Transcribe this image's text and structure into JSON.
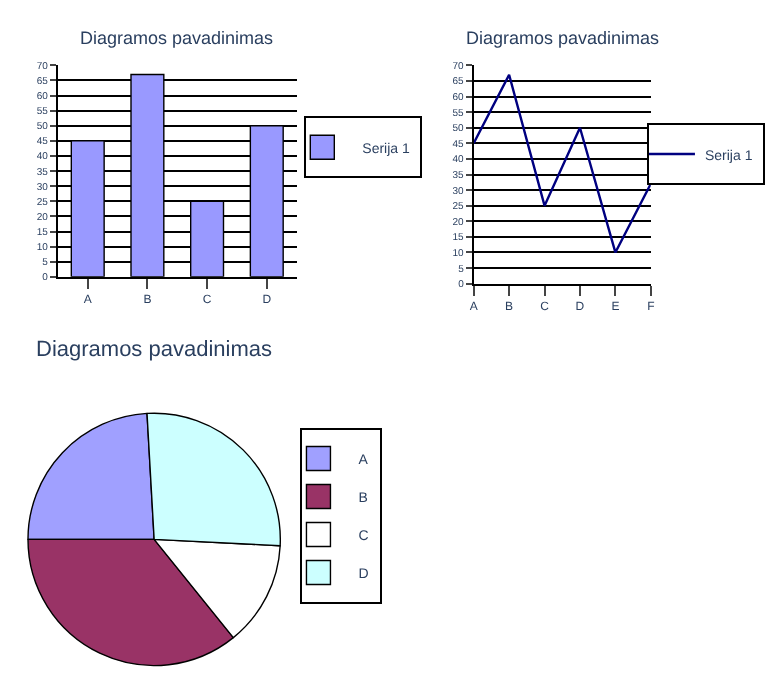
{
  "chart_data": [
    {
      "type": "bar",
      "title": "Diagramos pavadinimas",
      "categories": [
        "A",
        "B",
        "C",
        "D"
      ],
      "series": [
        {
          "name": "Serija 1",
          "color": "#9999ff",
          "values": [
            45,
            67,
            25,
            50
          ]
        }
      ],
      "ylim": [
        0,
        70
      ],
      "yticks": [
        0,
        5,
        10,
        15,
        20,
        25,
        30,
        35,
        40,
        45,
        50,
        55,
        60,
        65,
        70
      ],
      "grid": "y",
      "legend": "right"
    },
    {
      "type": "line",
      "title": "Diagramos pavadinimas",
      "categories": [
        "A",
        "B",
        "C",
        "D",
        "E",
        "F"
      ],
      "series": [
        {
          "name": "Serija 1",
          "color": "#000080",
          "values": [
            45,
            67,
            25,
            50,
            10,
            32
          ]
        }
      ],
      "ylim": [
        0,
        70
      ],
      "yticks": [
        0,
        5,
        10,
        15,
        20,
        25,
        30,
        35,
        40,
        45,
        50,
        55,
        60,
        65,
        70
      ],
      "grid": "y",
      "legend": "right",
      "marker": "none"
    },
    {
      "type": "pie",
      "title": "Diagramos pavadinimas",
      "categories": [
        "A",
        "B",
        "C",
        "D"
      ],
      "values": [
        24.1,
        35.8,
        13.4,
        26.7
      ],
      "colors": [
        "#a0a0ff",
        "#993366",
        "#ffffff",
        "#ccffff"
      ],
      "legend": "right"
    }
  ]
}
